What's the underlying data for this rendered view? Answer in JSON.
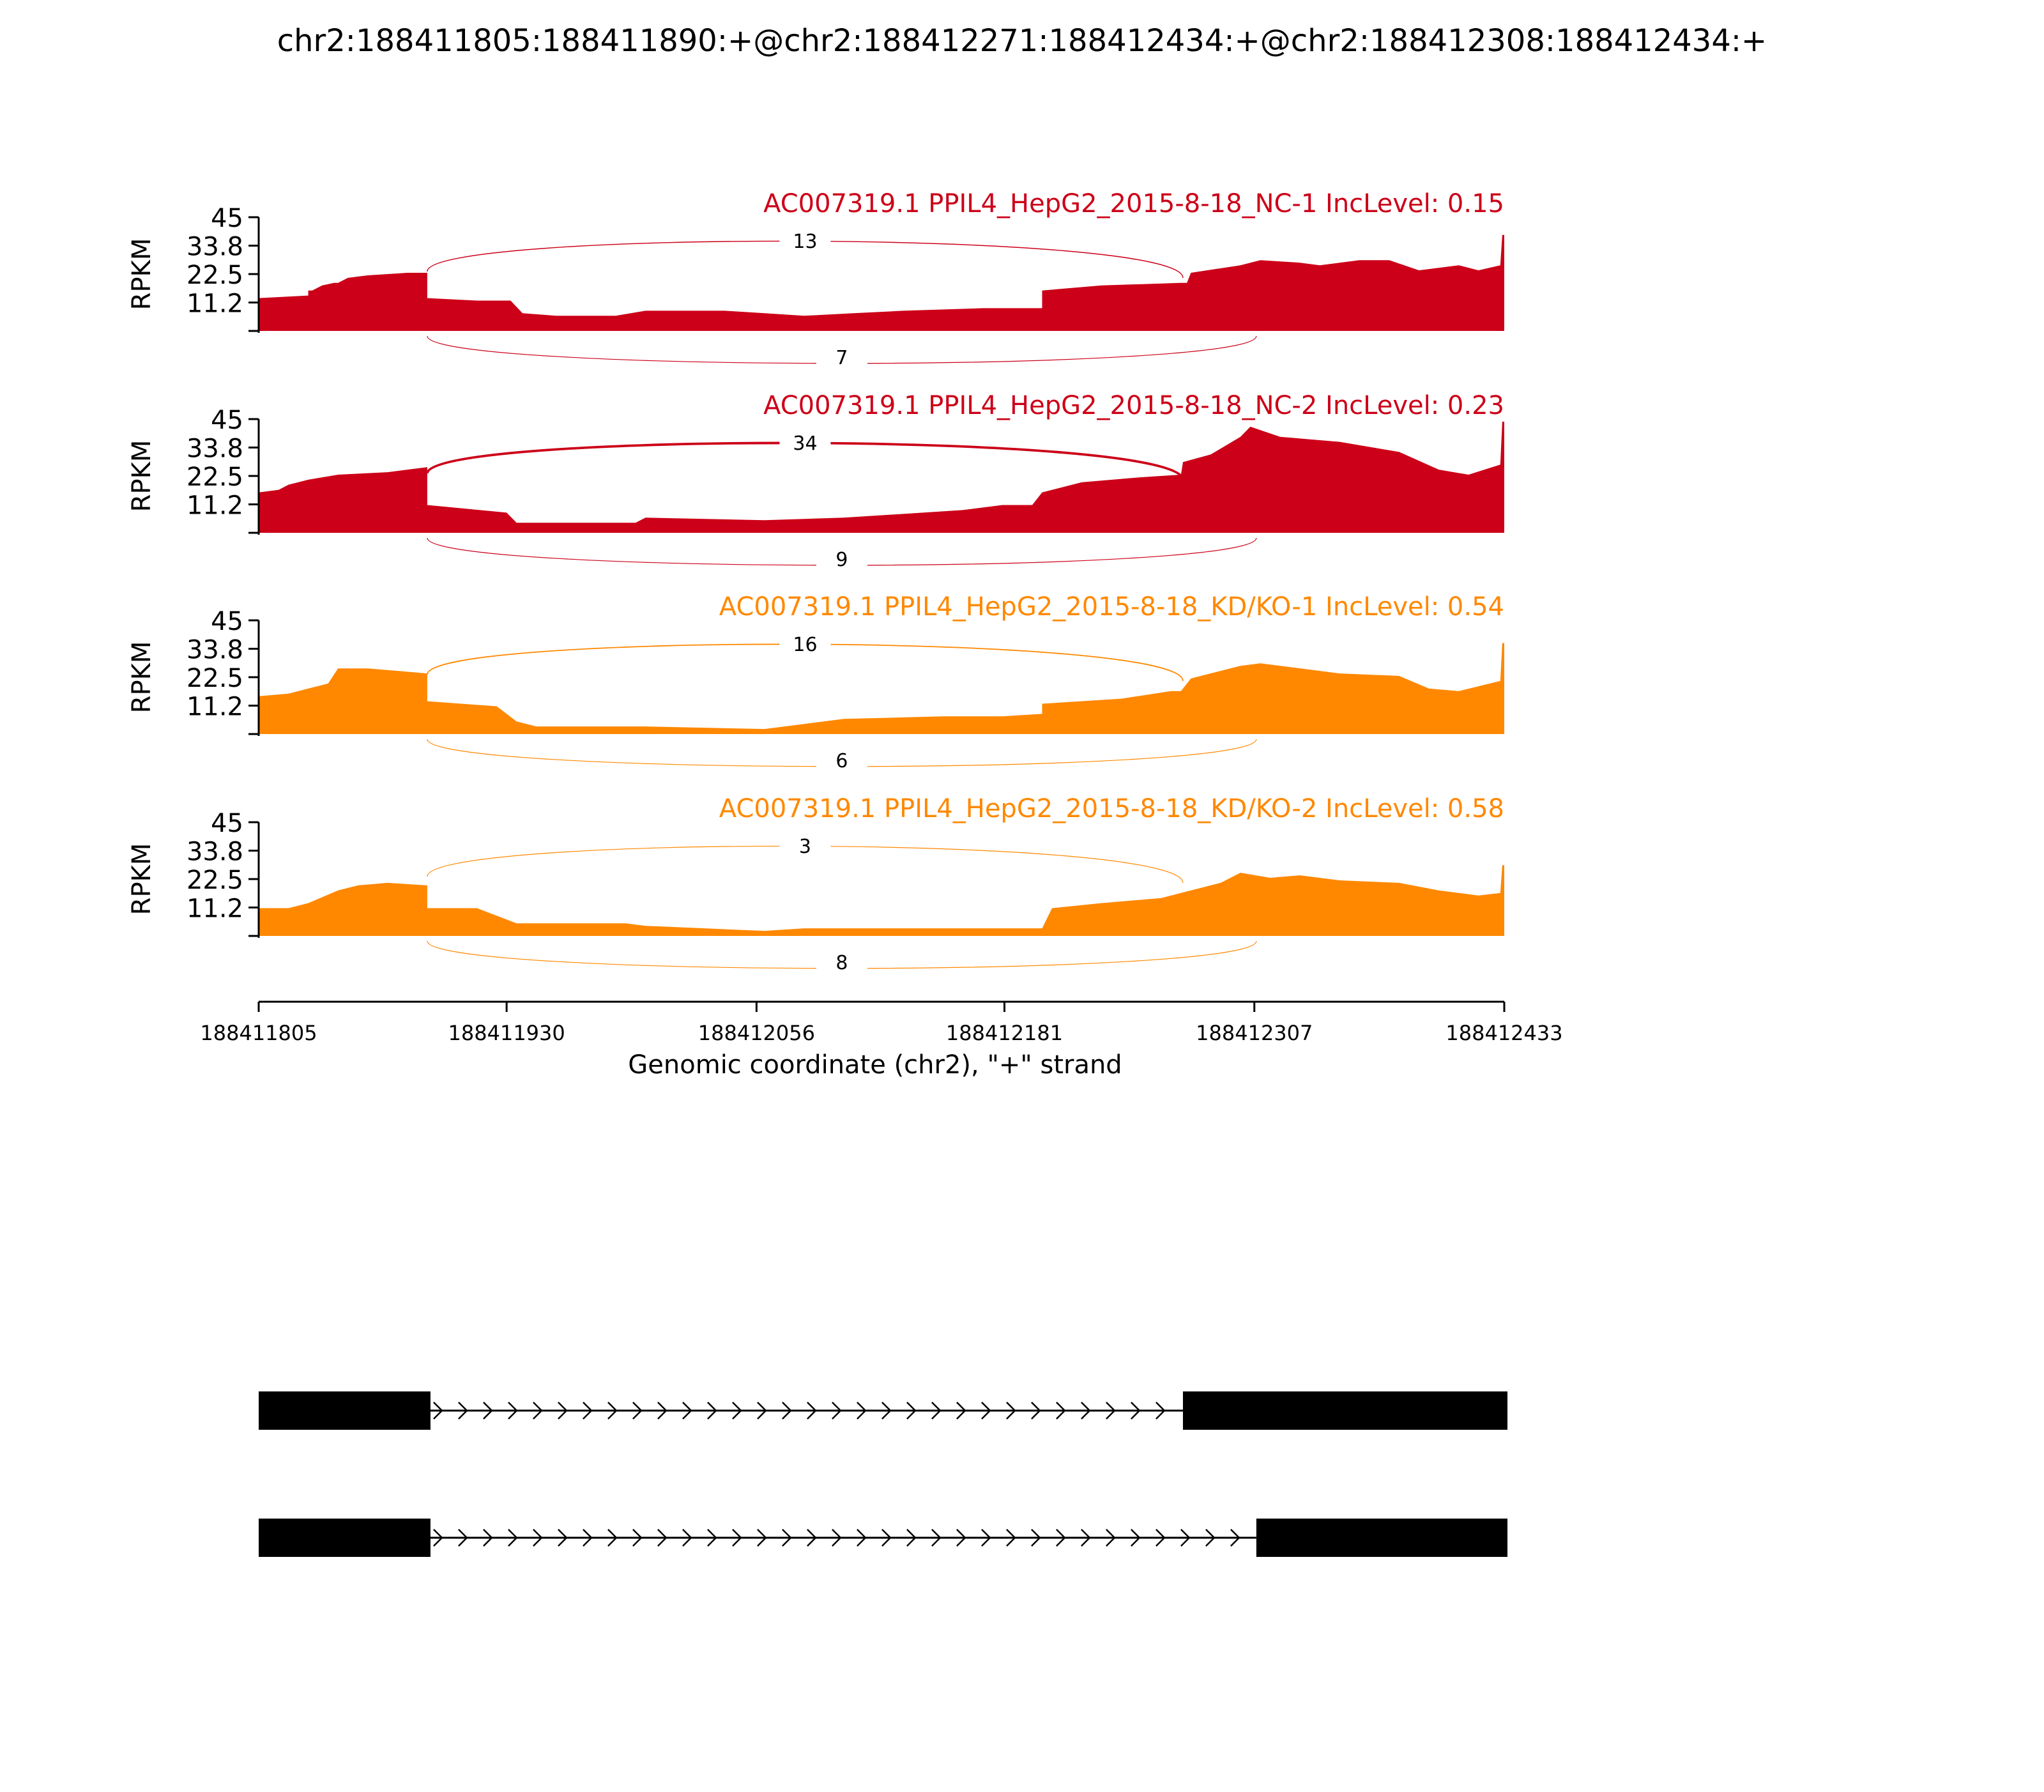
{
  "title": "chr2:188411805:188411890:+@chr2:188412271:188412434:+@chr2:188412308:188412434:+",
  "colors": {
    "nc": "#cc0018",
    "kd": "#ff8800",
    "axis": "#000000",
    "gene": "#000000"
  },
  "chart_data": {
    "type": "area",
    "title": "chr2:188411805:188411890:+@chr2:188412271:188412434:+@chr2:188412308:188412434:+",
    "xlabel": "Genomic coordinate (chr2), \"+\" strand",
    "ylabel": "RPKM",
    "xlim": [
      188411805,
      188412433
    ],
    "ylim": [
      0,
      45
    ],
    "x_ticks": [
      "188411805",
      "188411930",
      "188412056",
      "188412181",
      "188412307",
      "188412433"
    ],
    "y_ticks": [
      "11.2",
      "22.5",
      "33.8",
      "45"
    ],
    "series": [
      {
        "name": "AC007319.1 PPIL4_HepG2_2015-8-18_NC-1 IncLevel: 0.15",
        "color": "#cc0018",
        "coverage": [
          [
            188411805,
            13
          ],
          [
            188411830,
            14
          ],
          [
            188411830,
            16
          ],
          [
            188411832,
            16
          ],
          [
            188411837,
            18
          ],
          [
            188411843,
            19
          ],
          [
            188411845,
            19
          ],
          [
            188411850,
            21
          ],
          [
            188411860,
            22
          ],
          [
            188411880,
            23
          ],
          [
            188411890,
            23
          ],
          [
            188411890,
            13
          ],
          [
            188411915,
            12
          ],
          [
            188411932,
            12
          ],
          [
            188411938,
            7
          ],
          [
            188411955,
            6
          ],
          [
            188411985,
            6
          ],
          [
            188412000,
            8
          ],
          [
            188412040,
            8
          ],
          [
            188412060,
            7
          ],
          [
            188412080,
            6
          ],
          [
            188412105,
            7
          ],
          [
            188412130,
            8
          ],
          [
            188412170,
            9
          ],
          [
            188412200,
            9
          ],
          [
            188412200,
            16
          ],
          [
            188412230,
            18
          ],
          [
            188412270,
            19
          ],
          [
            188412273,
            19
          ],
          [
            188412275,
            23
          ],
          [
            188412300,
            26
          ],
          [
            188412310,
            28
          ],
          [
            188412330,
            27
          ],
          [
            188412340,
            26
          ],
          [
            188412360,
            28
          ],
          [
            188412375,
            28
          ],
          [
            188412390,
            24
          ],
          [
            188412410,
            26
          ],
          [
            188412420,
            24
          ],
          [
            188412431,
            26
          ],
          [
            188412432,
            38
          ],
          [
            188412433,
            38
          ]
        ],
        "junctions": [
          {
            "label": "13",
            "side": "above",
            "start": 188411890,
            "end": 188412271,
            "count": 13
          },
          {
            "label": "7",
            "side": "below",
            "start": 188411890,
            "end": 188412308,
            "count": 7
          }
        ]
      },
      {
        "name": "AC007319.1 PPIL4_HepG2_2015-8-18_NC-2 IncLevel: 0.23",
        "color": "#cc0018",
        "coverage": [
          [
            188411805,
            16
          ],
          [
            188411815,
            17
          ],
          [
            188411820,
            19
          ],
          [
            188411830,
            21
          ],
          [
            188411845,
            23
          ],
          [
            188411870,
            24
          ],
          [
            188411890,
            26
          ],
          [
            188411890,
            11
          ],
          [
            188411930,
            8
          ],
          [
            188411935,
            4
          ],
          [
            188411995,
            4
          ],
          [
            188412000,
            6
          ],
          [
            188412060,
            5
          ],
          [
            188412100,
            6
          ],
          [
            188412160,
            9
          ],
          [
            188412180,
            11
          ],
          [
            188412195,
            11
          ],
          [
            188412200,
            16
          ],
          [
            188412220,
            20
          ],
          [
            188412250,
            22
          ],
          [
            188412270,
            23
          ],
          [
            188412271,
            28
          ],
          [
            188412285,
            31
          ],
          [
            188412300,
            38
          ],
          [
            188412305,
            42
          ],
          [
            188412320,
            38
          ],
          [
            188412350,
            36
          ],
          [
            188412380,
            32
          ],
          [
            188412400,
            25
          ],
          [
            188412415,
            23
          ],
          [
            188412431,
            27
          ],
          [
            188412432,
            44
          ],
          [
            188412433,
            44
          ]
        ],
        "junctions": [
          {
            "label": "34",
            "side": "above",
            "start": 188411890,
            "end": 188412271,
            "count": 34
          },
          {
            "label": "9",
            "side": "below",
            "start": 188411890,
            "end": 188412308,
            "count": 9
          }
        ]
      },
      {
        "name": "AC007319.1 PPIL4_HepG2_2015-8-18_KD/KO-1 IncLevel: 0.54",
        "color": "#ff8800",
        "coverage": [
          [
            188411805,
            15
          ],
          [
            188411820,
            16
          ],
          [
            188411830,
            18
          ],
          [
            188411840,
            20
          ],
          [
            188411845,
            26
          ],
          [
            188411860,
            26
          ],
          [
            188411890,
            24
          ],
          [
            188411890,
            13
          ],
          [
            188411925,
            11
          ],
          [
            188411935,
            5
          ],
          [
            188411945,
            3
          ],
          [
            188412000,
            3
          ],
          [
            188412060,
            2
          ],
          [
            188412080,
            4
          ],
          [
            188412100,
            6
          ],
          [
            188412150,
            7
          ],
          [
            188412180,
            7
          ],
          [
            188412200,
            8
          ],
          [
            188412200,
            12
          ],
          [
            188412240,
            14
          ],
          [
            188412265,
            17
          ],
          [
            188412270,
            17
          ],
          [
            188412275,
            22
          ],
          [
            188412300,
            27
          ],
          [
            188412310,
            28
          ],
          [
            188412350,
            24
          ],
          [
            188412380,
            23
          ],
          [
            188412395,
            18
          ],
          [
            188412410,
            17
          ],
          [
            188412431,
            21
          ],
          [
            188412432,
            36
          ],
          [
            188412433,
            36
          ]
        ],
        "junctions": [
          {
            "label": "16",
            "side": "above",
            "start": 188411890,
            "end": 188412271,
            "count": 16
          },
          {
            "label": "6",
            "side": "below",
            "start": 188411890,
            "end": 188412308,
            "count": 6
          }
        ]
      },
      {
        "name": "AC007319.1 PPIL4_HepG2_2015-8-18_KD/KO-2 IncLevel: 0.58",
        "color": "#ff8800",
        "coverage": [
          [
            188411805,
            11
          ],
          [
            188411820,
            11
          ],
          [
            188411830,
            13
          ],
          [
            188411845,
            18
          ],
          [
            188411855,
            20
          ],
          [
            188411870,
            21
          ],
          [
            188411890,
            20
          ],
          [
            188411890,
            11
          ],
          [
            188411915,
            11
          ],
          [
            188411935,
            5
          ],
          [
            188411990,
            5
          ],
          [
            188412000,
            4
          ],
          [
            188412060,
            2
          ],
          [
            188412080,
            3
          ],
          [
            188412100,
            3
          ],
          [
            188412160,
            3
          ],
          [
            188412200,
            3
          ],
          [
            188412205,
            11
          ],
          [
            188412230,
            13
          ],
          [
            188412260,
            15
          ],
          [
            188412290,
            21
          ],
          [
            188412300,
            25
          ],
          [
            188412315,
            23
          ],
          [
            188412330,
            24
          ],
          [
            188412350,
            22
          ],
          [
            188412380,
            21
          ],
          [
            188412400,
            18
          ],
          [
            188412420,
            16
          ],
          [
            188412431,
            17
          ],
          [
            188412432,
            28
          ],
          [
            188412433,
            28
          ]
        ],
        "junctions": [
          {
            "label": "3",
            "side": "above",
            "start": 188411890,
            "end": 188412271,
            "count": 3
          },
          {
            "label": "8",
            "side": "below",
            "start": 188411890,
            "end": 188412308,
            "count": 8
          }
        ]
      }
    ],
    "isoforms": [
      {
        "exons": [
          [
            188411805,
            188411890
          ],
          [
            188412271,
            188412433
          ]
        ]
      },
      {
        "exons": [
          [
            188411805,
            188411890
          ],
          [
            188412308,
            188412433
          ]
        ]
      }
    ]
  }
}
